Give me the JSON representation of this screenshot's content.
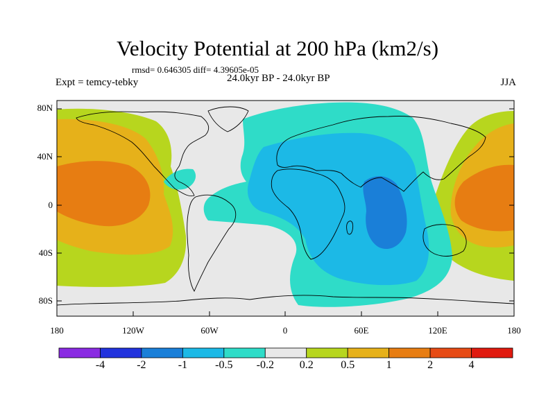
{
  "title": "Velocity Potential at 200 hPa (km2/s)",
  "stats": "rmsd= 0.646305 diff= 4.39605e-05",
  "period": "24.0kyr BP - 24.0kyr BP",
  "experiment": "Expt = temcy-tebky",
  "season": "JJA",
  "lat_ticks": [
    "80N",
    "40N",
    "0",
    "40S",
    "80S"
  ],
  "lon_ticks": [
    "180",
    "120W",
    "60W",
    "0",
    "60E",
    "120E",
    "180"
  ],
  "colorbar": {
    "labels": [
      "-4",
      "-2",
      "-1",
      "-0.5",
      "-0.2",
      "0.2",
      "0.5",
      "1",
      "2",
      "4"
    ],
    "colors": [
      "#8a2be2",
      "#2233dd",
      "#1a7fd8",
      "#1cb9e6",
      "#2fdcc8",
      "#e8e8e8",
      "#b7d61e",
      "#e6b11a",
      "#e77d12",
      "#e64b15",
      "#e01a0f"
    ]
  },
  "map": {
    "projection": "cylindrical equidistant",
    "lon_range": [
      -180,
      180
    ],
    "lat_range": [
      -90,
      90
    ],
    "background_color": "#e8e8e8"
  }
}
